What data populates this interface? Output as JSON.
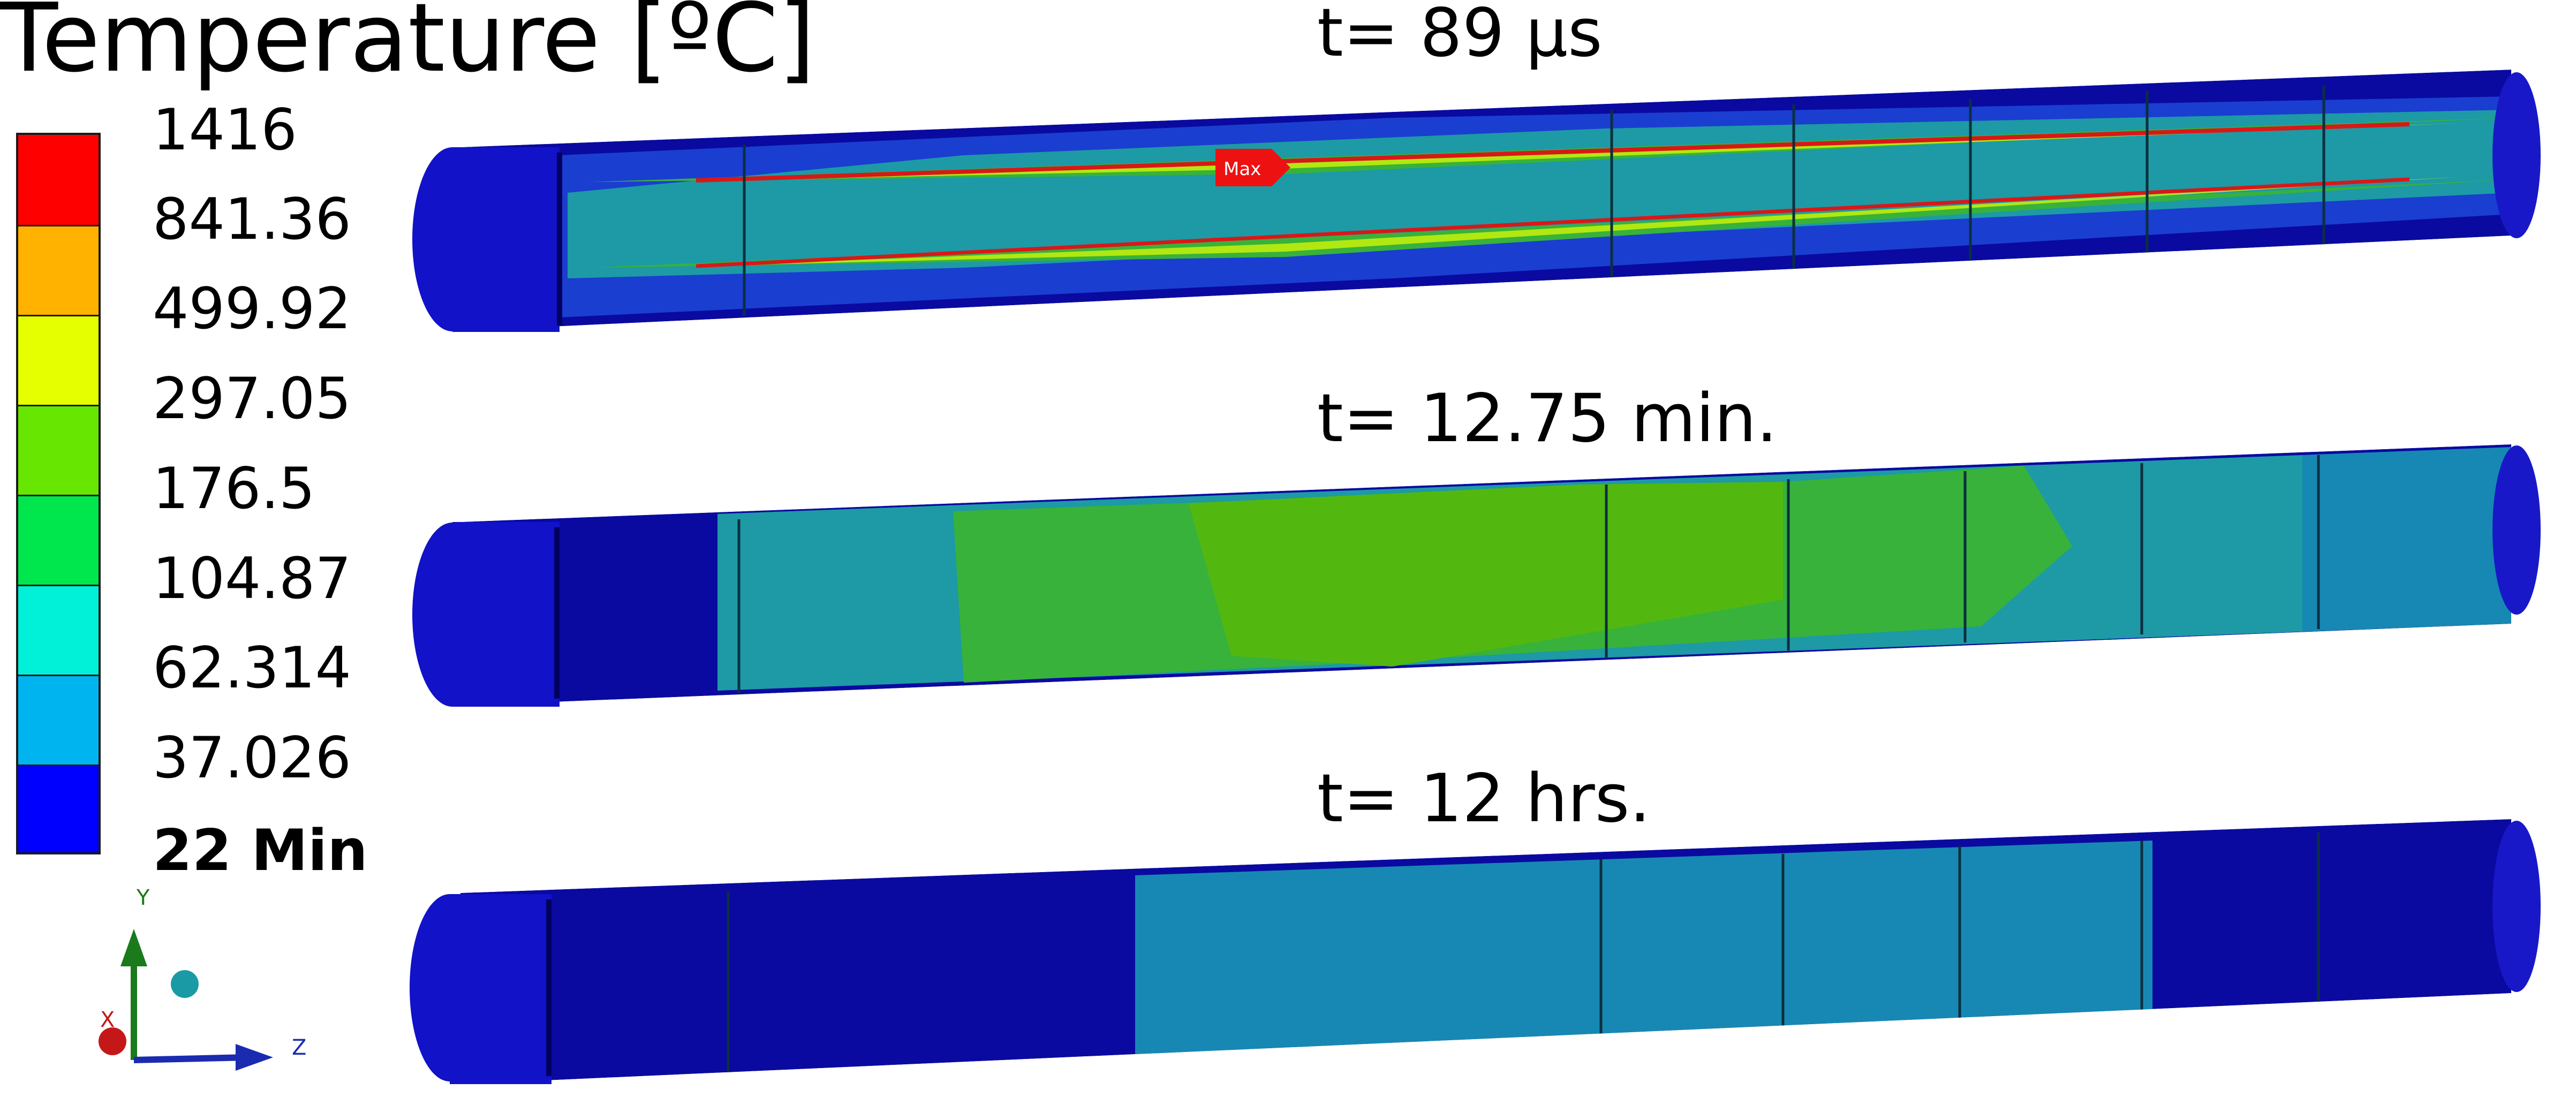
{
  "title": "Temperature [ºC]",
  "legend": {
    "labels": [
      "1416",
      "841.36",
      "499.92",
      "297.05",
      "176.5",
      "104.87",
      "62.314",
      "37.026",
      "22 Min"
    ],
    "colors": [
      "#ff0000",
      "#ffb300",
      "#e6ff00",
      "#66e600",
      "#00e64d",
      "#00f0d8",
      "#00b4f0",
      "#0000ff"
    ]
  },
  "snapshots": [
    {
      "time_label": "t= 89 µs",
      "max_marker": "Max"
    },
    {
      "time_label": "t= 12.75 min."
    },
    {
      "time_label": "t= 12 hrs."
    }
  ],
  "axes_triad": {
    "x": "X",
    "y": "Y",
    "z": "Z"
  },
  "colors": {
    "deep_blue": "#0a0aa0",
    "mid_blue": "#1a3ed0",
    "teal": "#1d9aa5",
    "green": "#38b23a",
    "steel_blue": "#1788b3"
  }
}
